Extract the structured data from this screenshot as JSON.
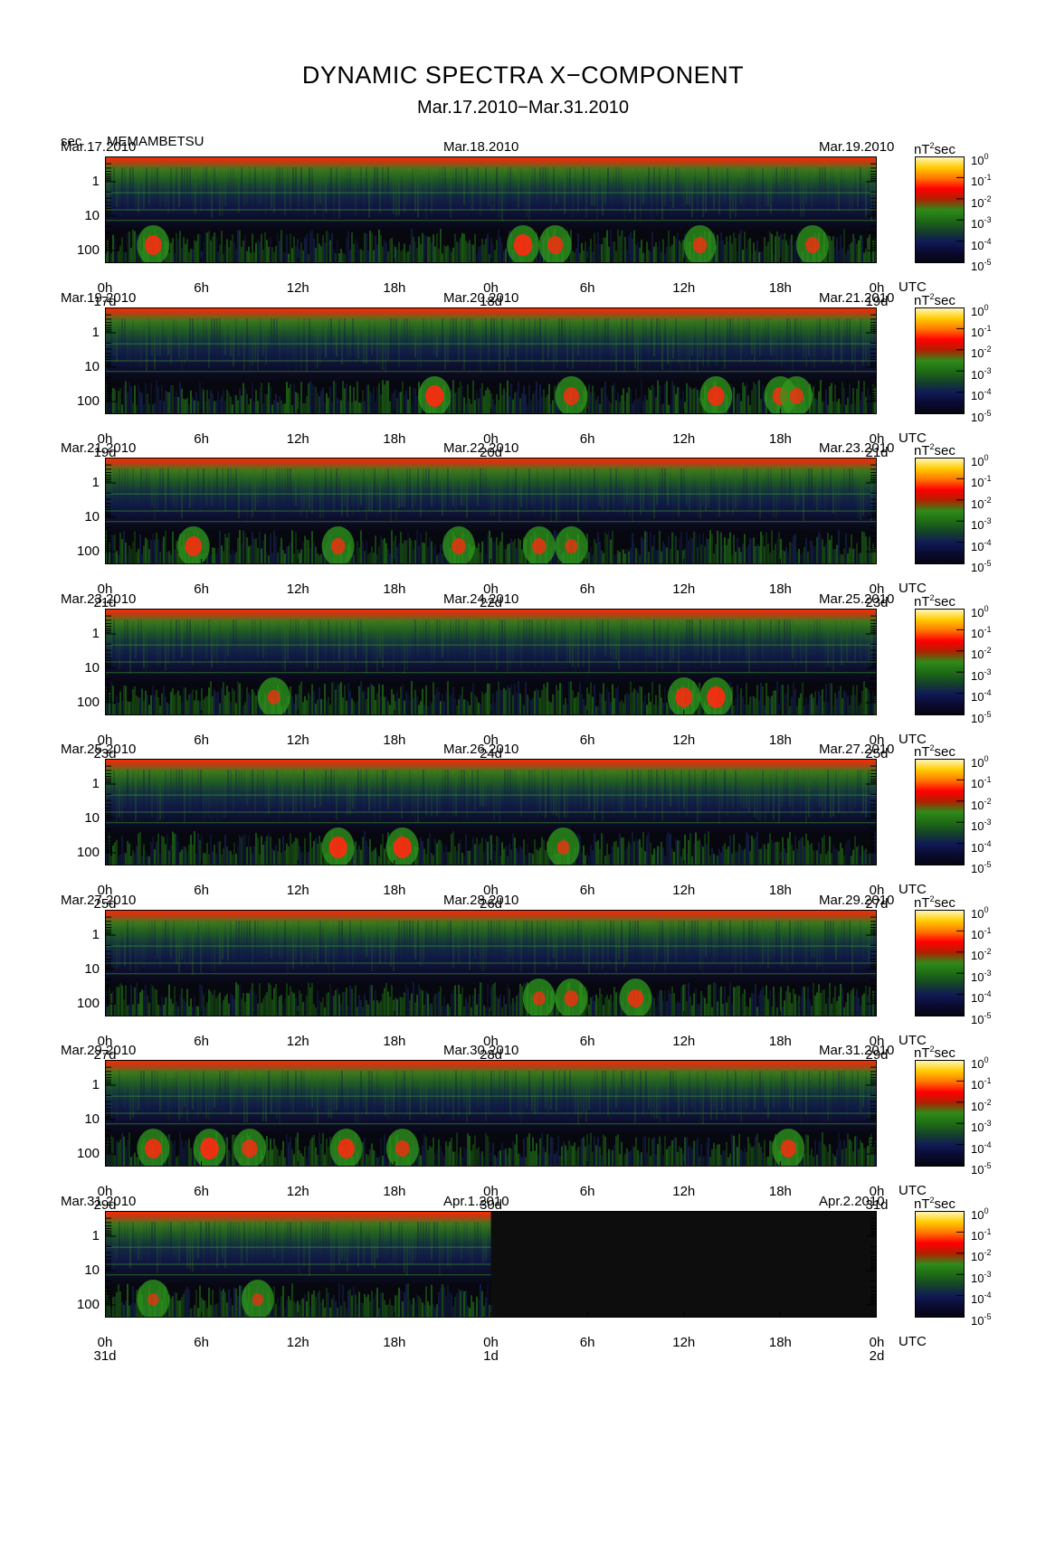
{
  "title": "DYNAMIC SPECTRA X−COMPONENT",
  "subtitle": "Mar.17.2010−Mar.31.2010",
  "y_unit": "sec",
  "station": "MEMAMBETSU",
  "colorbar": {
    "unit_base": "nT",
    "unit_sup": "2",
    "unit_tail": "sec",
    "ticks": [
      {
        "base": "10",
        "exp": "0"
      },
      {
        "base": "10",
        "exp": "-1"
      },
      {
        "base": "10",
        "exp": "-2"
      },
      {
        "base": "10",
        "exp": "-3"
      },
      {
        "base": "10",
        "exp": "-4"
      },
      {
        "base": "10",
        "exp": "-5"
      }
    ],
    "colors": [
      "#fff8c0",
      "#ffcc00",
      "#ff7700",
      "#ff0000",
      "#b02000",
      "#2f8a1a",
      "#1e6b14",
      "#14422a",
      "#101a55",
      "#0a0a30",
      "#050510"
    ]
  },
  "chart_data": {
    "type": "heatmap",
    "x_unit": "UTC",
    "y_ticks": [
      "1",
      "10",
      "100"
    ],
    "x_ticks": [
      "0h",
      "6h",
      "12h",
      "18h",
      "0h",
      "6h",
      "12h",
      "18h",
      "0h"
    ],
    "panels": [
      {
        "date_left": "Mar.17.2010",
        "date_mid": "Mar.18.2010",
        "date_right": "Mar.19.2010",
        "day_labels": [
          "17d",
          "18d",
          "19d"
        ],
        "data_fraction": 1.0,
        "events": [
          [
            3,
            0.8
          ],
          [
            26,
            0.9
          ],
          [
            28,
            0.7
          ],
          [
            37,
            0.6
          ],
          [
            44,
            0.6
          ]
        ]
      },
      {
        "date_left": "Mar.19.2010",
        "date_mid": "Mar.20.2010",
        "date_right": "Mar.21.2010",
        "day_labels": [
          "19d",
          "20d",
          "21d"
        ],
        "data_fraction": 1.0,
        "events": [
          [
            20.5,
            0.9
          ],
          [
            29,
            0.7
          ],
          [
            38,
            0.8
          ],
          [
            42,
            0.7
          ],
          [
            43,
            0.6
          ]
        ]
      },
      {
        "date_left": "Mar.21.2010",
        "date_mid": "Mar.22.2010",
        "date_right": "Mar.23.2010",
        "day_labels": [
          "21d",
          "22d",
          "23d"
        ],
        "data_fraction": 1.0,
        "events": [
          [
            5.5,
            0.8
          ],
          [
            14.5,
            0.6
          ],
          [
            22,
            0.6
          ],
          [
            27,
            0.6
          ],
          [
            29,
            0.5
          ]
        ]
      },
      {
        "date_left": "Mar.23.2010",
        "date_mid": "Mar.24.2010",
        "date_right": "Mar.25.2010",
        "day_labels": [
          "23d",
          "24d",
          "25d"
        ],
        "data_fraction": 1.0,
        "events": [
          [
            10.5,
            0.5
          ],
          [
            36,
            0.8
          ],
          [
            38,
            0.9
          ]
        ]
      },
      {
        "date_left": "Mar.25.2010",
        "date_mid": "Mar.26.2010",
        "date_right": "Mar.27.2010",
        "day_labels": [
          "25d",
          "26d",
          "27d"
        ],
        "data_fraction": 1.0,
        "events": [
          [
            14.5,
            0.9
          ],
          [
            18.5,
            0.9
          ],
          [
            28.5,
            0.5
          ]
        ]
      },
      {
        "date_left": "Mar.27.2010",
        "date_mid": "Mar.28.2010",
        "date_right": "Mar.29.2010",
        "day_labels": [
          "27d",
          "28d",
          "29d"
        ],
        "data_fraction": 1.0,
        "events": [
          [
            27,
            0.5
          ],
          [
            29,
            0.6
          ],
          [
            33,
            0.7
          ]
        ]
      },
      {
        "date_left": "Mar.29.2010",
        "date_mid": "Mar.30.2010",
        "date_right": "Mar.31.2010",
        "day_labels": [
          "29d",
          "30d",
          "31d"
        ],
        "data_fraction": 1.0,
        "events": [
          [
            3,
            0.8
          ],
          [
            6.5,
            0.9
          ],
          [
            9,
            0.7
          ],
          [
            15,
            0.8
          ],
          [
            18.5,
            0.6
          ],
          [
            42.5,
            0.7
          ]
        ]
      },
      {
        "date_left": "Mar.31.2010",
        "date_mid": "Apr.1.2010",
        "date_right": "Apr.2.2010",
        "day_labels": [
          "31d",
          "1d",
          "2d"
        ],
        "data_fraction": 0.5,
        "events": [
          [
            3,
            0.4
          ],
          [
            9.5,
            0.4
          ]
        ]
      }
    ]
  }
}
